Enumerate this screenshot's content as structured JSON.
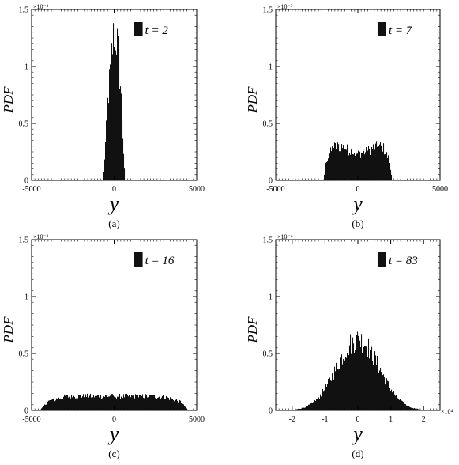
{
  "figure": {
    "ylabel": "PDF",
    "xlabel": "y"
  },
  "chart_data": [
    {
      "type": "bar",
      "subfigure_label": "(a)",
      "legend": "t = 2",
      "legend_placement": "top-right",
      "ylabel": "PDF",
      "xlabel": "y",
      "xlim": [
        -5000,
        5000
      ],
      "xticks": [
        -5000,
        0,
        5000
      ],
      "xtick_labels": [
        "-5000",
        "0",
        "5000"
      ],
      "x_multiplier": "",
      "ylim": [
        0,
        0.0015
      ],
      "yticks": [
        0,
        0.0005,
        0.001,
        0.0015
      ],
      "ytick_labels": [
        "0",
        "0.5",
        "1",
        "1.5"
      ],
      "y_multiplier": "×10⁻³",
      "grid": false,
      "profile": {
        "shape": "triangle",
        "x": [
          -650,
          -400,
          -200,
          0,
          200,
          400,
          650
        ],
        "values": [
          0.0,
          0.00065,
          0.00102,
          0.00132,
          0.0012,
          0.0008,
          0.0
        ]
      }
    },
    {
      "type": "bar",
      "subfigure_label": "(b)",
      "legend": "t = 7",
      "legend_placement": "top-right",
      "ylabel": "PDF",
      "xlabel": "y",
      "xlim": [
        -5000,
        5000
      ],
      "xticks": [
        -5000,
        0,
        5000
      ],
      "xtick_labels": [
        "-5000",
        "0",
        "5000"
      ],
      "x_multiplier": "",
      "ylim": [
        0,
        0.0015
      ],
      "yticks": [
        0,
        0.0005,
        0.001,
        0.0015
      ],
      "ytick_labels": [
        "0",
        "0.5",
        "1",
        "1.5"
      ],
      "y_multiplier": "×10⁻³",
      "grid": false,
      "profile": {
        "x": [
          -2100,
          -1900,
          -1500,
          -1000,
          -500,
          0,
          500,
          1000,
          1500,
          1900,
          2100
        ],
        "values": [
          0.0,
          0.00018,
          0.00029,
          0.0003,
          0.00026,
          0.00023,
          0.00025,
          0.00029,
          0.0003,
          0.00018,
          0.0
        ]
      }
    },
    {
      "type": "bar",
      "subfigure_label": "(c)",
      "legend": "t = 16",
      "legend_placement": "top-right",
      "ylabel": "PDF",
      "xlabel": "y",
      "xlim": [
        -5000,
        5000
      ],
      "xticks": [
        -5000,
        0,
        5000
      ],
      "xtick_labels": [
        "-5000",
        "0",
        "5000"
      ],
      "x_multiplier": "",
      "ylim": [
        0,
        0.0015
      ],
      "yticks": [
        0,
        0.0005,
        0.001,
        0.0015
      ],
      "ytick_labels": [
        "0",
        "0.5",
        "1",
        "1.5"
      ],
      "y_multiplier": "×10⁻³",
      "grid": false,
      "profile": {
        "x": [
          -4500,
          -4000,
          -3000,
          -2000,
          -1000,
          0,
          1000,
          2000,
          3000,
          4000,
          4500
        ],
        "values": [
          0.0,
          8e-05,
          0.00012,
          0.000125,
          0.000125,
          0.000125,
          0.000125,
          0.000125,
          0.00012,
          8e-05,
          0.0
        ]
      }
    },
    {
      "type": "bar",
      "subfigure_label": "(d)",
      "legend": "t = 83",
      "legend_placement": "top-right",
      "ylabel": "PDF",
      "xlabel": "y",
      "xlim": [
        -25000,
        25000
      ],
      "xticks": [
        -20000,
        -10000,
        0,
        10000,
        20000
      ],
      "xtick_labels": [
        "-2",
        "-1",
        "0",
        "1",
        "2"
      ],
      "x_multiplier": "×10⁴",
      "ylim": [
        0,
        0.00015
      ],
      "yticks": [
        0,
        5e-05,
        0.0001,
        0.00015
      ],
      "ytick_labels": [
        "0",
        "0.5",
        "1",
        "1.5"
      ],
      "y_multiplier": "×10⁻⁴",
      "grid": false,
      "profile": {
        "shape": "gaussian",
        "mean": 0,
        "std": 6500,
        "peak": 6.2e-05,
        "x_range": [
          -19000,
          19000
        ]
      }
    }
  ]
}
